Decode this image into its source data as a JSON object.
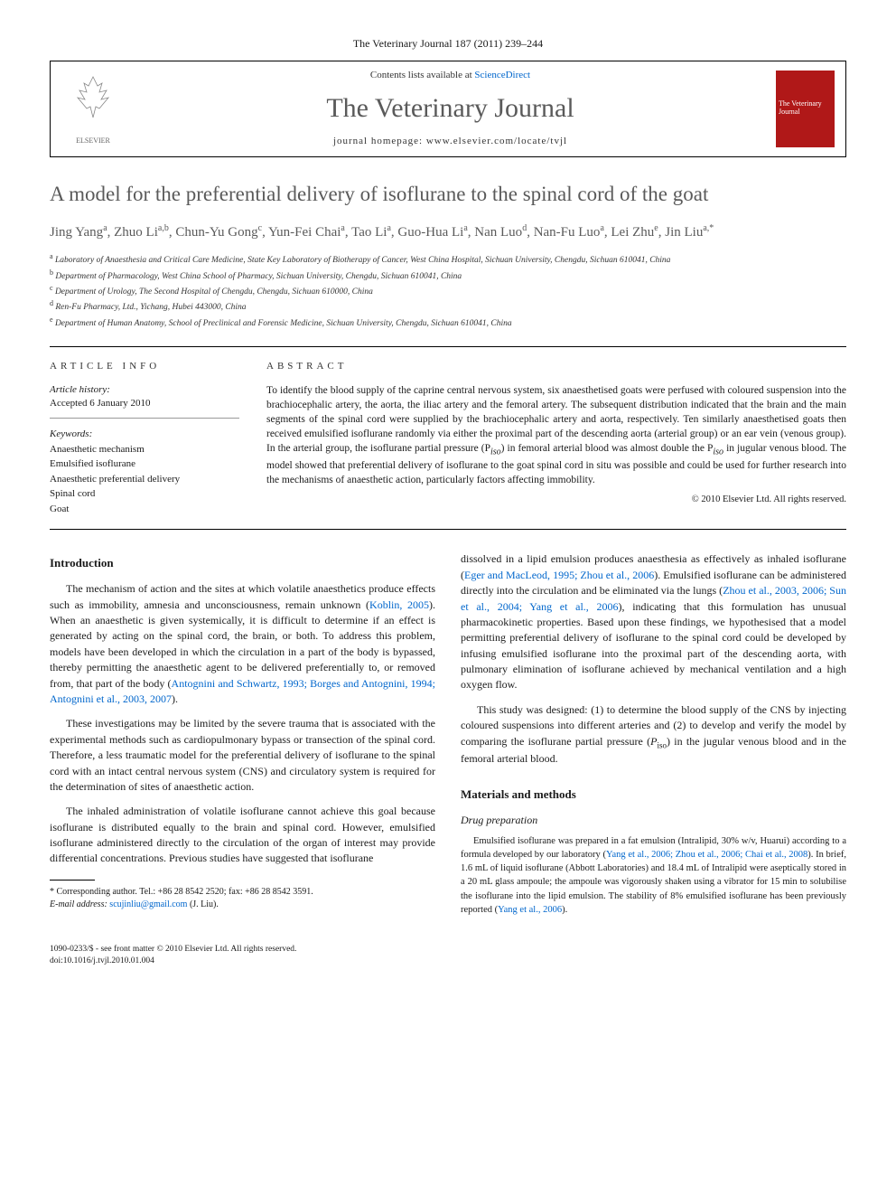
{
  "journal_header": "The Veterinary Journal 187 (2011) 239–244",
  "header_box": {
    "contents_line_prefix": "Contents lists available at ",
    "sciencedirect": "ScienceDirect",
    "journal_name": "The Veterinary Journal",
    "homepage_prefix": "journal homepage: ",
    "homepage_url": "www.elsevier.com/locate/tvjl",
    "elsevier_label": "ELSEVIER",
    "cover_title": "The Veterinary Journal"
  },
  "title": "A model for the preferential delivery of isoflurane to the spinal cord of the goat",
  "authors_html": "Jing Yang<sup class='author-sup'>a</sup>, Zhuo Li<sup class='author-sup'>a,b</sup>, Chun-Yu Gong<sup class='author-sup'>c</sup>, Yun-Fei Chai<sup class='author-sup'>a</sup>, Tao Li<sup class='author-sup'>a</sup>, Guo-Hua Li<sup class='author-sup'>a</sup>, Nan Luo<sup class='author-sup'>d</sup>, Nan-Fu Luo<sup class='author-sup'>a</sup>, Lei Zhu<sup class='author-sup'>e</sup>, Jin Liu<sup class='author-sup'>a,*</sup>",
  "affiliations": [
    {
      "sup": "a",
      "text": "Laboratory of Anaesthesia and Critical Care Medicine, State Key Laboratory of Biotherapy of Cancer, West China Hospital, Sichuan University, Chengdu, Sichuan 610041, China"
    },
    {
      "sup": "b",
      "text": "Department of Pharmacology, West China School of Pharmacy, Sichuan University, Chengdu, Sichuan 610041, China"
    },
    {
      "sup": "c",
      "text": "Department of Urology, The Second Hospital of Chengdu, Chengdu, Sichuan 610000, China"
    },
    {
      "sup": "d",
      "text": "Ren-Fu Pharmacy, Ltd., Yichang, Hubei 443000, China"
    },
    {
      "sup": "e",
      "text": "Department of Human Anatomy, School of Preclinical and Forensic Medicine, Sichuan University, Chengdu, Sichuan 610041, China"
    }
  ],
  "article_info": {
    "heading": "ARTICLE INFO",
    "history_label": "Article history:",
    "accepted": "Accepted 6 January 2010",
    "keywords_label": "Keywords:",
    "keywords": [
      "Anaesthetic mechanism",
      "Emulsified isoflurane",
      "Anaesthetic preferential delivery",
      "Spinal cord",
      "Goat"
    ]
  },
  "abstract": {
    "heading": "ABSTRACT",
    "text": "To identify the blood supply of the caprine central nervous system, six anaesthetised goats were perfused with coloured suspension into the brachiocephalic artery, the aorta, the iliac artery and the femoral artery. The subsequent distribution indicated that the brain and the main segments of the spinal cord were supplied by the brachiocephalic artery and aorta, respectively. Ten similarly anaesthetised goats then received emulsified isoflurane randomly via either the proximal part of the descending aorta (arterial group) or an ear vein (venous group). In the arterial group, the isoflurane partial pressure (P",
    "piso": "iso",
    "text2": ") in femoral arterial blood was almost double the P",
    "text3": " in jugular venous blood. The model showed that preferential delivery of isoflurane to the goat spinal cord in situ was possible and could be used for further research into the mechanisms of anaesthetic action, particularly factors affecting immobility.",
    "copyright": "© 2010 Elsevier Ltd. All rights reserved."
  },
  "body": {
    "intro_heading": "Introduction",
    "intro_p1_a": "The mechanism of action and the sites at which volatile anaesthetics produce effects such as immobility, amnesia and unconsciousness, remain unknown (",
    "intro_p1_cite1": "Koblin, 2005",
    "intro_p1_b": "). When an anaesthetic is given systemically, it is difficult to determine if an effect is generated by acting on the spinal cord, the brain, or both. To address this problem, models have been developed in which the circulation in a part of the body is bypassed, thereby permitting the anaesthetic agent to be delivered preferentially to, or removed from, that part of the body (",
    "intro_p1_cite2": "Antognini and Schwartz, 1993; Borges and Antognini, 1994; Antognini et al., 2003, 2007",
    "intro_p1_c": ").",
    "intro_p2": "These investigations may be limited by the severe trauma that is associated with the experimental methods such as cardiopulmonary bypass or transection of the spinal cord. Therefore, a less traumatic model for the preferential delivery of isoflurane to the spinal cord with an intact central nervous system (CNS) and circulatory system is required for the determination of sites of anaesthetic action.",
    "intro_p3": "The inhaled administration of volatile isoflurane cannot achieve this goal because isoflurane is distributed equally to the brain and spinal cord. However, emulsified isoflurane administered directly to the circulation of the organ of interest may provide differential concentrations. Previous studies have suggested that isoflurane",
    "col2_p1_a": "dissolved in a lipid emulsion produces anaesthesia as effectively as inhaled isoflurane (",
    "col2_p1_cite1": "Eger and MacLeod, 1995; Zhou et al., 2006",
    "col2_p1_b": "). Emulsified isoflurane can be administered directly into the circulation and be eliminated via the lungs (",
    "col2_p1_cite2": "Zhou et al., 2003, 2006; Sun et al., 2004; Yang et al., 2006",
    "col2_p1_c": "), indicating that this formulation has unusual pharmacokinetic properties. Based upon these findings, we hypothesised that a model permitting preferential delivery of isoflurane to the spinal cord could be developed by infusing emulsified isoflurane into the proximal part of the descending aorta, with pulmonary elimination of isoflurane achieved by mechanical ventilation and a high oxygen flow.",
    "col2_p2_a": "This study was designed: (1) to determine the blood supply of the CNS by injecting coloured suspensions into different arteries and (2) to develop and verify the model by comparing the isoflurane partial pressure (",
    "col2_p2_piso": "P",
    "col2_p2_sub": "iso",
    "col2_p2_b": ") in the jugular venous blood and in the femoral arterial blood.",
    "methods_heading": "Materials and methods",
    "drug_prep_heading": "Drug preparation",
    "drug_prep_a": "Emulsified isoflurane was prepared in a fat emulsion (Intralipid, 30% w/v, Huarui) according to a formula developed by our laboratory (",
    "drug_prep_cite1": "Yang et al., 2006; Zhou et al., 2006; Chai et al., 2008",
    "drug_prep_b": "). In brief, 1.6 mL of liquid isoflurane (Abbott Laboratories) and 18.4 mL of Intralipid were aseptically stored in a 20 mL glass ampoule; the ampoule was vigorously shaken using a vibrator for 15 min to solubilise the isoflurane into the lipid emulsion. The stability of 8% emulsified isoflurane has been previously reported (",
    "drug_prep_cite2": "Yang et al., 2006",
    "drug_prep_c": ")."
  },
  "footnote": {
    "corresponding": "* Corresponding author. Tel.: +86 28 8542 2520; fax: +86 28 8542 3591.",
    "email_label": "E-mail address:",
    "email": "scujinliu@gmail.com",
    "email_person": "(J. Liu)."
  },
  "footer": {
    "line1": "1090-0233/$ - see front matter © 2010 Elsevier Ltd. All rights reserved.",
    "line2": "doi:10.1016/j.tvjl.2010.01.004"
  },
  "colors": {
    "link": "#0066cc",
    "cover_bg": "#b01818",
    "title_gray": "#5a5a5a"
  }
}
